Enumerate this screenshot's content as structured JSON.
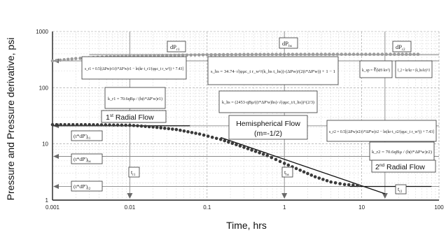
{
  "chart_data": {
    "type": "line",
    "xscale": "log",
    "yscale": "log",
    "xlim": [
      0.001,
      100
    ],
    "ylim": [
      1,
      1000
    ],
    "xlabel": "Time, hrs",
    "ylabel": "Pressure and Pressure derivative, psi",
    "xticks": [
      "0.001",
      "0.01",
      "0.1",
      "1",
      "10",
      "100"
    ],
    "yticks": [
      "1000",
      "100",
      "10",
      "1"
    ],
    "grid": true,
    "pressure": {
      "x": [
        0.001,
        0.002,
        0.005,
        0.01,
        0.03,
        0.1,
        0.3,
        1,
        3,
        10,
        30,
        60
      ],
      "y": [
        300,
        330,
        355,
        365,
        375,
        385,
        390,
        392,
        393,
        393,
        393,
        393
      ]
    },
    "derivative": {
      "x": [
        0.001,
        0.003,
        0.01,
        0.02,
        0.04,
        0.08,
        0.15,
        0.3,
        0.6,
        1.0,
        1.6,
        2.5,
        4,
        6,
        10
      ],
      "y": [
        22,
        22,
        21.5,
        20,
        18,
        15,
        12,
        8.7,
        6.2,
        4.5,
        3.4,
        2.6,
        2.1,
        1.9,
        1.8
      ]
    },
    "fitted_lines": [
      {
        "label": "1st Radial Flow",
        "x": [
          0.001,
          0.06
        ],
        "y": [
          21,
          21
        ]
      },
      {
        "label": "Hemispherical Flow (m=-1/2)",
        "x": [
          0.15,
          20
        ],
        "y": [
          13,
          1.3
        ]
      },
      {
        "label": "2nd Radial Flow",
        "x": [
          7,
          80
        ],
        "y": [
          1.75,
          1.75
        ]
      }
    ],
    "reference_levels": [
      {
        "label": "dP_r1",
        "y": 300
      },
      {
        "label": "dP_hs",
        "y": 380
      },
      {
        "label": "dP_r2",
        "y": 393
      },
      {
        "label": "(t*dP')_r1",
        "y": 21
      },
      {
        "label": "(t*dP')_hs",
        "y": 6
      },
      {
        "label": "(t*dP')_r2",
        "y": 1.75
      }
    ],
    "time_markers": [
      {
        "label": "t_r1",
        "x": 0.01
      },
      {
        "label": "t_hs",
        "x": 1
      },
      {
        "label": "t_r2",
        "x": 20
      }
    ],
    "flow_regime_labels": {
      "first": {
        "prefix": "1",
        "sup": "st",
        "suffix": " Radial Flow"
      },
      "hemispherical_1": "Hemispherical Flow",
      "hemispherical_2": "(m=-1/2)",
      "second": {
        "prefix": "2",
        "sup": "nd",
        "suffix": " Radial Flow"
      }
    },
    "marker_labels": {
      "dp_r1": {
        "main": "dP",
        "sub": "r1"
      },
      "dp_hs": {
        "main": "dP",
        "sub": "hs"
      },
      "dp_r2": {
        "main": "dP",
        "sub": "r2"
      },
      "tdp_r1": {
        "main": "(t*dP')",
        "sub": "r1"
      },
      "tdp_hs": {
        "main": "(t*dP')",
        "sub": "hs"
      },
      "tdp_r2": {
        "main": "(t*dP')",
        "sub": "r2"
      },
      "t_r1": {
        "main": "t",
        "sub": "r1"
      },
      "t_hs": {
        "main": "t",
        "sub": "hs"
      },
      "t_r2": {
        "main": "t",
        "sub": "r2"
      }
    },
    "equations": {
      "s_r1": "s_r1 = 0.5[(ΔPw)r1/(t*ΔP'w)r1 − ln(kr·t_r1/(φμc_t r_w²)) + 7.43]",
      "k_r1": "k_r1 = 70.6qBμ / (h(t*ΔP'w)r1)",
      "s_hs": "s_hs = 34.74·√(φμc_t r_w²/(k_hs t_hs))·(ΔPw)/(2(t*ΔP'w)) + 1 − 1",
      "k_hs": "k_hs = (2453·qBμ/((t*ΔP'w)hs)·√(φμc_t/t_hs))^(2/3)",
      "k_sp": "k_sp = ∛(kH·kv²)",
      "I_2": "I_2 = kr/kz = (k_hs/kr)^3",
      "s_r2": "s_r2 = 0.5[(ΔPw)r2/(t*ΔP'w)r2 − ln(kr·t_r2/(φμc_t r_w²)) + 7.43]",
      "k_r2": "k_r2 = 70.6qBμ / (h(t*ΔP'w)r2)"
    }
  }
}
